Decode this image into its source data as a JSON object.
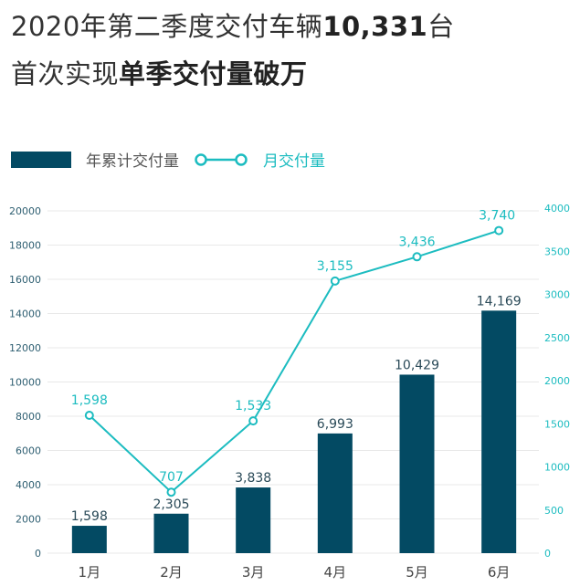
{
  "title": {
    "line1_normal": "2020年第二季度交付车辆",
    "line1_bold": "10,331",
    "line1_suffix": "台",
    "line2_normal": "首次实现",
    "line2_bold": "单季交付量破万"
  },
  "colors": {
    "bar": "#034a63",
    "line": "#1cbcc0",
    "grid": "#e8e8e8",
    "left_axis": "#2f5f72"
  },
  "chart_data": {
    "type": "bar+line",
    "categories": [
      "1月",
      "2月",
      "3月",
      "4月",
      "5月",
      "6月"
    ],
    "series": [
      {
        "name": "年累计交付量",
        "type": "bar",
        "axis": "left",
        "values": [
          1598,
          2305,
          3838,
          6993,
          10429,
          14169
        ],
        "labels": [
          "1,598",
          "2,305",
          "3,838",
          "6,993",
          "10,429",
          "14,169"
        ]
      },
      {
        "name": "月交付量",
        "type": "line",
        "axis": "right",
        "values": [
          1598,
          707,
          1533,
          3155,
          3436,
          3740
        ],
        "labels": [
          "1,598",
          "707",
          "1,533",
          "3,155",
          "3,436",
          "3,740"
        ]
      }
    ],
    "left_axis": {
      "range": [
        0,
        20000
      ],
      "ticks": [
        "0",
        "2000",
        "4000",
        "6000",
        "8000",
        "10000",
        "12000",
        "14000",
        "16000",
        "18000",
        "20000"
      ]
    },
    "right_axis": {
      "range": [
        0,
        4000
      ],
      "ticks": [
        "0",
        "500",
        "1000",
        "1500",
        "2000",
        "2500",
        "3000",
        "3500",
        "4000"
      ]
    },
    "grid": true,
    "legend_position": "top-left"
  }
}
